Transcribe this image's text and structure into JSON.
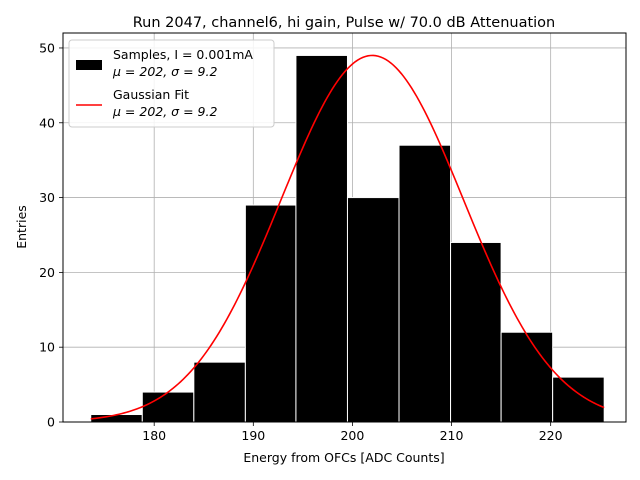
{
  "chart_data": {
    "type": "bar",
    "title": "Run 2047, channel6, hi gain, Pulse w/ 70.0 dB Attenuation",
    "xlabel": "Energy from OFCs [ADC Counts]",
    "ylabel": "Entries",
    "xlim": [
      170.8,
      227.6
    ],
    "ylim": [
      0,
      52
    ],
    "xticks": [
      180,
      190,
      200,
      210,
      220
    ],
    "yticks": [
      0,
      10,
      20,
      30,
      40,
      50
    ],
    "grid": true,
    "bin_edges": [
      173.6,
      178.8,
      184.0,
      189.2,
      194.3,
      199.5,
      204.7,
      209.9,
      215.0,
      220.2,
      225.4
    ],
    "values": [
      1,
      4,
      8,
      29,
      49,
      30,
      37,
      24,
      12,
      6
    ],
    "fit": {
      "mu": 202,
      "sigma": 9.2,
      "amplitude": 49,
      "x_range": [
        173.6,
        225.4
      ]
    },
    "legend": {
      "position": "upper-left",
      "entries": [
        {
          "name": "Samples, I = 0.001mA",
          "stats": "μ = 202, σ = 9.2",
          "color": "#000000",
          "kind": "bar"
        },
        {
          "name": "Gaussian Fit",
          "stats": "μ = 202, σ = 9.2",
          "color": "#e41a1c",
          "kind": "line"
        }
      ]
    },
    "colors": {
      "bars": "#000000",
      "bar_edge": "#ffffff",
      "fit": "#ff0000",
      "grid": "#b0b0b0"
    }
  }
}
